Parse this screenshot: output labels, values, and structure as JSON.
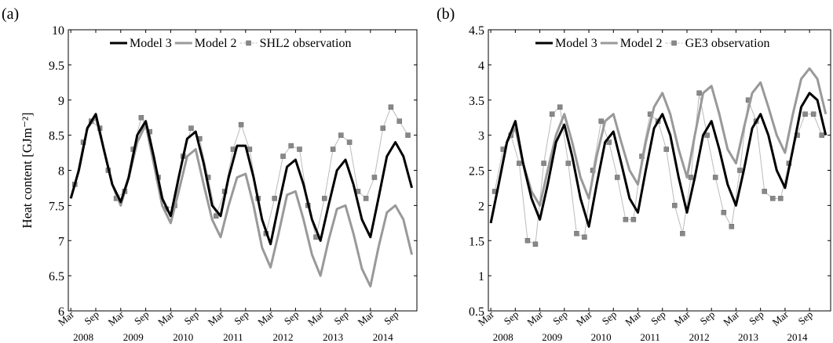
{
  "chart_data": [
    {
      "type": "line",
      "panel_label": "(a)",
      "ylabel": "Heat content [GJm⁻²]",
      "xlim": [
        2008.12,
        2015.1
      ],
      "ylim": [
        6,
        10
      ],
      "yticks": [
        6,
        6.5,
        7,
        7.5,
        8,
        8.5,
        9,
        9.5,
        10
      ],
      "xticks": [
        {
          "value": 2008.17,
          "label": "Mar"
        },
        {
          "value": 2008.67,
          "label": "Sep"
        },
        {
          "value": 2009.17,
          "label": "Mar"
        },
        {
          "value": 2009.67,
          "label": "Sep"
        },
        {
          "value": 2010.17,
          "label": "Mar"
        },
        {
          "value": 2010.67,
          "label": "Sep"
        },
        {
          "value": 2011.17,
          "label": "Mar"
        },
        {
          "value": 2011.67,
          "label": "Sep"
        },
        {
          "value": 2012.17,
          "label": "Mar"
        },
        {
          "value": 2012.67,
          "label": "Sep"
        },
        {
          "value": 2013.17,
          "label": "Mar"
        },
        {
          "value": 2013.67,
          "label": "Sep"
        },
        {
          "value": 2014.17,
          "label": "Mar"
        },
        {
          "value": 2014.67,
          "label": "Sep"
        }
      ],
      "year_labels": [
        {
          "value": 2008.42,
          "label": "2008"
        },
        {
          "value": 2009.42,
          "label": "2009"
        },
        {
          "value": 2010.42,
          "label": "2010"
        },
        {
          "value": 2011.42,
          "label": "2011"
        },
        {
          "value": 2012.42,
          "label": "2012"
        },
        {
          "value": 2013.42,
          "label": "2013"
        },
        {
          "value": 2014.42,
          "label": "2014"
        }
      ],
      "x": [
        2008.17,
        2008.33,
        2008.5,
        2008.67,
        2008.83,
        2009.0,
        2009.17,
        2009.33,
        2009.5,
        2009.67,
        2009.83,
        2010.0,
        2010.17,
        2010.33,
        2010.5,
        2010.67,
        2010.83,
        2011.0,
        2011.17,
        2011.33,
        2011.5,
        2011.67,
        2011.83,
        2012.0,
        2012.17,
        2012.33,
        2012.5,
        2012.67,
        2012.83,
        2013.0,
        2013.17,
        2013.33,
        2013.5,
        2013.67,
        2013.83,
        2014.0,
        2014.17,
        2014.33,
        2014.5,
        2014.67,
        2014.83,
        2015.0
      ],
      "series": [
        {
          "name": "Model 3",
          "color": "#000000",
          "values": [
            7.6,
            8.0,
            8.6,
            8.8,
            8.3,
            7.8,
            7.55,
            7.9,
            8.5,
            8.7,
            8.2,
            7.6,
            7.35,
            7.9,
            8.45,
            8.55,
            8.1,
            7.5,
            7.35,
            7.9,
            8.35,
            8.35,
            7.9,
            7.3,
            6.95,
            7.5,
            8.05,
            8.15,
            7.8,
            7.3,
            7.0,
            7.5,
            8.0,
            8.15,
            7.8,
            7.3,
            7.05,
            7.6,
            8.2,
            8.4,
            8.2,
            7.75
          ]
        },
        {
          "name": "Model 2",
          "color": "#999999",
          "values": [
            7.6,
            8.0,
            8.6,
            8.75,
            8.3,
            7.8,
            7.5,
            7.9,
            8.4,
            8.65,
            8.1,
            7.5,
            7.25,
            7.7,
            8.2,
            8.3,
            7.8,
            7.3,
            7.05,
            7.5,
            7.9,
            7.95,
            7.5,
            6.9,
            6.62,
            7.1,
            7.65,
            7.7,
            7.3,
            6.8,
            6.5,
            7.0,
            7.45,
            7.5,
            7.1,
            6.6,
            6.35,
            6.9,
            7.4,
            7.5,
            7.3,
            6.8
          ]
        },
        {
          "name": "SHL2 observation",
          "color": "#888888",
          "marker": "square",
          "x": [
            2008.25,
            2008.42,
            2008.58,
            2008.75,
            2008.92,
            2009.08,
            2009.25,
            2009.42,
            2009.58,
            2009.75,
            2009.92,
            2010.08,
            2010.25,
            2010.42,
            2010.58,
            2010.75,
            2010.92,
            2011.08,
            2011.25,
            2011.42,
            2011.58,
            2011.75,
            2011.92,
            2012.08,
            2012.25,
            2012.42,
            2012.58,
            2012.75,
            2012.92,
            2013.08,
            2013.25,
            2013.42,
            2013.58,
            2013.75,
            2013.92,
            2014.08,
            2014.25,
            2014.42,
            2014.58,
            2014.75,
            2014.92
          ],
          "values": [
            7.8,
            8.4,
            8.7,
            8.6,
            8.0,
            7.6,
            7.7,
            8.3,
            8.75,
            8.55,
            7.9,
            7.45,
            7.5,
            8.2,
            8.6,
            8.45,
            7.9,
            7.35,
            7.7,
            8.3,
            8.65,
            8.3,
            7.6,
            7.1,
            7.6,
            8.2,
            8.35,
            8.3,
            7.5,
            7.05,
            7.6,
            8.3,
            8.5,
            8.4,
            7.7,
            7.6,
            7.9,
            8.6,
            8.9,
            8.7,
            8.5
          ]
        }
      ]
    },
    {
      "type": "line",
      "panel_label": "(b)",
      "xlim": [
        2008.12,
        2015.1
      ],
      "ylim": [
        0.5,
        4.5
      ],
      "yticks": [
        0.5,
        1,
        1.5,
        2,
        2.5,
        3,
        3.5,
        4,
        4.5
      ],
      "xticks": [
        {
          "value": 2008.17,
          "label": "Mar"
        },
        {
          "value": 2008.67,
          "label": "Sep"
        },
        {
          "value": 2009.17,
          "label": "Mar"
        },
        {
          "value": 2009.67,
          "label": "Sep"
        },
        {
          "value": 2010.17,
          "label": "Mar"
        },
        {
          "value": 2010.67,
          "label": "Sep"
        },
        {
          "value": 2011.17,
          "label": "Mar"
        },
        {
          "value": 2011.67,
          "label": "Sep"
        },
        {
          "value": 2012.17,
          "label": "Mar"
        },
        {
          "value": 2012.67,
          "label": "Sep"
        },
        {
          "value": 2013.17,
          "label": "Mar"
        },
        {
          "value": 2013.67,
          "label": "Sep"
        },
        {
          "value": 2014.17,
          "label": "Mar"
        },
        {
          "value": 2014.67,
          "label": "Sep"
        }
      ],
      "year_labels": [
        {
          "value": 2008.42,
          "label": "2008"
        },
        {
          "value": 2009.42,
          "label": "2009"
        },
        {
          "value": 2010.42,
          "label": "2010"
        },
        {
          "value": 2011.42,
          "label": "2011"
        },
        {
          "value": 2012.42,
          "label": "2012"
        },
        {
          "value": 2013.42,
          "label": "2013"
        },
        {
          "value": 2014.42,
          "label": "2014"
        }
      ],
      "x": [
        2008.17,
        2008.33,
        2008.5,
        2008.67,
        2008.83,
        2009.0,
        2009.17,
        2009.33,
        2009.5,
        2009.67,
        2009.83,
        2010.0,
        2010.17,
        2010.33,
        2010.5,
        2010.67,
        2010.83,
        2011.0,
        2011.17,
        2011.33,
        2011.5,
        2011.67,
        2011.83,
        2012.0,
        2012.17,
        2012.33,
        2012.5,
        2012.67,
        2012.83,
        2013.0,
        2013.17,
        2013.33,
        2013.5,
        2013.67,
        2013.83,
        2014.0,
        2014.17,
        2014.33,
        2014.5,
        2014.67,
        2014.83,
        2015.0
      ],
      "series": [
        {
          "name": "Model 3",
          "color": "#000000",
          "values": [
            1.75,
            2.3,
            2.9,
            3.2,
            2.6,
            2.1,
            1.8,
            2.3,
            2.9,
            3.15,
            2.7,
            2.1,
            1.7,
            2.3,
            2.9,
            3.05,
            2.6,
            2.1,
            1.9,
            2.5,
            3.1,
            3.3,
            3.0,
            2.4,
            1.9,
            2.4,
            3.0,
            3.2,
            2.8,
            2.3,
            2.0,
            2.5,
            3.1,
            3.3,
            3.0,
            2.5,
            2.25,
            2.8,
            3.4,
            3.6,
            3.5,
            3.0
          ]
        },
        {
          "name": "Model 2",
          "color": "#999999",
          "values": [
            1.75,
            2.3,
            2.9,
            3.1,
            2.6,
            2.2,
            2.0,
            2.5,
            3.0,
            3.3,
            2.9,
            2.4,
            2.1,
            2.7,
            3.2,
            3.3,
            2.9,
            2.5,
            2.3,
            2.9,
            3.4,
            3.6,
            3.3,
            2.8,
            2.4,
            3.0,
            3.6,
            3.7,
            3.3,
            2.8,
            2.6,
            3.1,
            3.6,
            3.75,
            3.4,
            3.0,
            2.75,
            3.3,
            3.8,
            3.95,
            3.8,
            3.3
          ]
        },
        {
          "name": "GE3 observation",
          "color": "#888888",
          "marker": "square",
          "x": [
            2008.25,
            2008.42,
            2008.58,
            2008.75,
            2008.92,
            2009.08,
            2009.25,
            2009.42,
            2009.58,
            2009.75,
            2009.92,
            2010.08,
            2010.25,
            2010.42,
            2010.58,
            2010.75,
            2010.92,
            2011.08,
            2011.25,
            2011.42,
            2011.58,
            2011.75,
            2011.92,
            2012.08,
            2012.25,
            2012.42,
            2012.58,
            2012.75,
            2012.92,
            2013.08,
            2013.25,
            2013.42,
            2013.58,
            2013.75,
            2013.92,
            2014.08,
            2014.25,
            2014.42,
            2014.58,
            2014.75,
            2014.92
          ],
          "values": [
            2.2,
            2.8,
            3.0,
            2.6,
            1.5,
            1.45,
            2.6,
            3.3,
            3.4,
            2.6,
            1.6,
            1.55,
            2.5,
            3.2,
            2.9,
            2.4,
            1.8,
            1.8,
            2.7,
            3.3,
            3.2,
            2.8,
            2.0,
            1.6,
            2.4,
            3.6,
            3.0,
            2.4,
            1.9,
            1.7,
            2.5,
            3.5,
            3.2,
            2.2,
            2.1,
            2.1,
            2.6,
            3.0,
            3.3,
            3.3,
            3.0
          ]
        }
      ]
    }
  ]
}
